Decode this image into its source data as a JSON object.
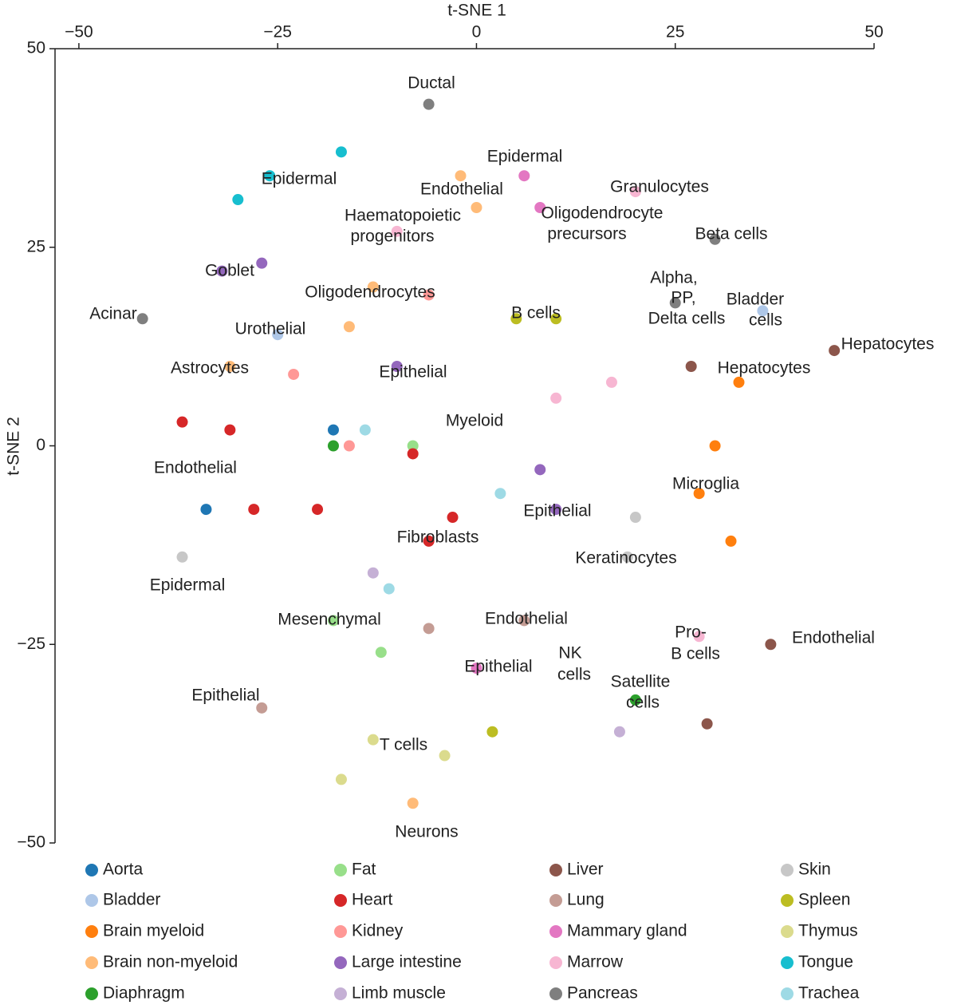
{
  "chart_data": {
    "type": "scatter",
    "x_label": "t-SNE 1",
    "y_label": "t-SNE 2",
    "xlim": [
      -53,
      50
    ],
    "ylim": [
      -50,
      50
    ],
    "xticks": [
      {
        "value": -50,
        "label": "−50"
      },
      {
        "value": -25,
        "label": "−25"
      },
      0,
      25,
      50
    ],
    "yticks": [
      {
        "value": -50,
        "label": "−50"
      },
      {
        "value": -25,
        "label": "−25"
      },
      0,
      25,
      50
    ],
    "series": [
      {
        "name": "Aorta",
        "color": "#1f77b4",
        "x": [
          -18,
          -34
        ],
        "y": [
          2,
          -8
        ]
      },
      {
        "name": "Bladder",
        "color": "#aec7e8",
        "x": [
          36,
          -25
        ],
        "y": [
          17,
          14
        ]
      },
      {
        "name": "Brain myeloid",
        "color": "#ff7f0e",
        "x": [
          30,
          32,
          33,
          28
        ],
        "y": [
          0,
          -12,
          8,
          -6
        ]
      },
      {
        "name": "Brain non-myeloid",
        "color": "#ffbb78",
        "x": [
          -16,
          -13,
          -31,
          -2,
          0,
          -8
        ],
        "y": [
          15,
          20,
          10,
          34,
          30,
          -45
        ]
      },
      {
        "name": "Diaphragm",
        "color": "#2ca02c",
        "x": [
          20,
          -18
        ],
        "y": [
          -32,
          0
        ]
      },
      {
        "name": "Fat",
        "color": "#98df8a",
        "x": [
          -18,
          -12,
          -8
        ],
        "y": [
          -22,
          -26,
          0
        ]
      },
      {
        "name": "Heart",
        "color": "#d62728",
        "x": [
          -37,
          -31,
          -6,
          -3,
          -28,
          -20,
          -8
        ],
        "y": [
          3,
          2,
          -12,
          -9,
          -8,
          -8,
          -1
        ]
      },
      {
        "name": "Kidney",
        "color": "#ff9896",
        "x": [
          -6,
          -23,
          -16
        ],
        "y": [
          19,
          9,
          0
        ]
      },
      {
        "name": "Large intestine",
        "color": "#9467bd",
        "x": [
          -32,
          -27,
          10,
          8,
          -10
        ],
        "y": [
          22,
          23,
          -8,
          -3,
          10
        ]
      },
      {
        "name": "Limb muscle",
        "color": "#c5b0d5",
        "x": [
          18,
          -13
        ],
        "y": [
          -36,
          -16
        ]
      },
      {
        "name": "Liver",
        "color": "#8c564b",
        "x": [
          27,
          45,
          37,
          29
        ],
        "y": [
          10,
          12,
          -25,
          -35
        ]
      },
      {
        "name": "Lung",
        "color": "#c49c94",
        "x": [
          6,
          -6,
          -27
        ],
        "y": [
          -22,
          -23,
          -33
        ]
      },
      {
        "name": "Mammary gland",
        "color": "#e377c2",
        "x": [
          6,
          8,
          0
        ],
        "y": [
          34,
          30,
          -28
        ]
      },
      {
        "name": "Marrow",
        "color": "#f7b6d2",
        "x": [
          -10,
          20,
          17,
          28,
          10
        ],
        "y": [
          27,
          32,
          8,
          -24,
          6
        ]
      },
      {
        "name": "Pancreas",
        "color": "#7f7f7f",
        "x": [
          -6,
          30,
          25,
          -42
        ],
        "y": [
          43,
          26,
          18,
          16
        ]
      },
      {
        "name": "Skin",
        "color": "#c7c7c7",
        "x": [
          19,
          20,
          -37
        ],
        "y": [
          -14,
          -9,
          -14
        ]
      },
      {
        "name": "Spleen",
        "color": "#bcbd22",
        "x": [
          10,
          5,
          2
        ],
        "y": [
          16,
          16,
          -36
        ]
      },
      {
        "name": "Thymus",
        "color": "#dbdb8d",
        "x": [
          -13,
          -4,
          -17
        ],
        "y": [
          -37,
          -39,
          -42
        ]
      },
      {
        "name": "Tongue",
        "color": "#17becf",
        "x": [
          -26,
          -17,
          -30
        ],
        "y": [
          34,
          37,
          31
        ]
      },
      {
        "name": "Trachea",
        "color": "#9edae5",
        "x": [
          -11,
          3,
          -14
        ],
        "y": [
          -18,
          -6,
          2
        ]
      }
    ],
    "annotations": [
      "Ductal",
      "Epidermal",
      "Epidermal",
      "Endothelial",
      "Granulocytes",
      "Haematopoietic",
      "progenitors",
      "Oligodendrocyte",
      "precursors",
      "Beta cells",
      "Goblet",
      "Alpha,",
      "PP,",
      "Delta cells",
      "Bladder",
      "cells",
      "Acinar",
      "Oligodendrocytes",
      "B cells",
      "Urothelial",
      "Hepatocytes",
      "Hepatocytes",
      "Astrocytes",
      "Epithelial",
      "Myeloid",
      "Endothelial",
      "Microglia",
      "Epithelial",
      "Fibroblasts",
      "Keratinocytes",
      "Epidermal",
      "Mesenchymal",
      "Endothelial",
      "Pro-",
      "B cells",
      "Endothelial",
      "NK",
      "cells",
      "Epithelial",
      "Satellite",
      "cells",
      "Epithelial",
      "T cells",
      "Neurons"
    ]
  }
}
